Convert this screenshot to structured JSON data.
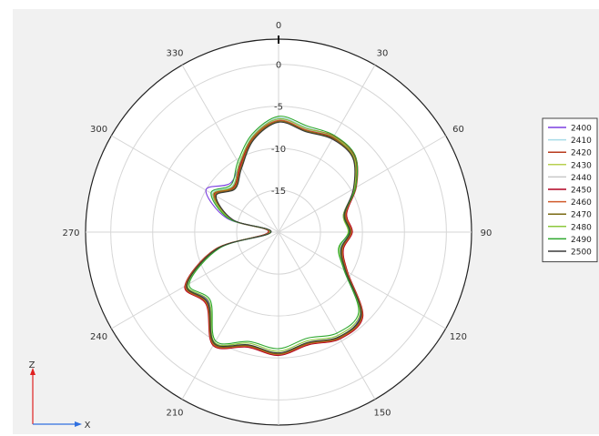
{
  "chart_data": {
    "type": "line",
    "subtype": "polar",
    "title": "",
    "angle_labels": [
      "0",
      "30",
      "60",
      "90",
      "120",
      "150",
      "180",
      "210",
      "240",
      "270",
      "300",
      "330"
    ],
    "radial_ticks": [
      "0",
      "-5",
      "-10",
      "-15"
    ],
    "rlim": [
      -20,
      3
    ],
    "grid": true,
    "legend_position": "right",
    "axes_glyph": {
      "vertical": "Z",
      "horizontal": "X"
    },
    "series_angles_deg": [
      0,
      15,
      30,
      45,
      60,
      75,
      90,
      105,
      120,
      135,
      150,
      165,
      180,
      195,
      210,
      225,
      240,
      255,
      270,
      285,
      300,
      315,
      330,
      345
    ],
    "series": [
      {
        "name": "2400",
        "color": "#7b3fe0",
        "values": [
          -6.8,
          -7.5,
          -7.2,
          -7.4,
          -9.5,
          -12.0,
          -11.5,
          -12.2,
          -10.8,
          -6.2,
          -5.5,
          -6.3,
          -5.5,
          -6.0,
          -4.6,
          -8.2,
          -7.4,
          -12.5,
          -19.0,
          -13.6,
          -10.0,
          -11.8,
          -10.7,
          -8.5
        ]
      },
      {
        "name": "2410",
        "color": "#a8dbe8",
        "values": [
          -6.4,
          -7.1,
          -6.9,
          -7.2,
          -9.4,
          -11.9,
          -11.6,
          -12.4,
          -10.7,
          -6.0,
          -5.3,
          -6.2,
          -5.3,
          -5.9,
          -4.5,
          -8.1,
          -7.3,
          -12.6,
          -18.8,
          -14.0,
          -10.8,
          -12.2,
          -10.6,
          -8.1
        ]
      },
      {
        "name": "2420",
        "color": "#b83a1c",
        "values": [
          -6.5,
          -7.2,
          -6.8,
          -7.1,
          -9.3,
          -11.7,
          -11.3,
          -12.1,
          -10.6,
          -5.9,
          -5.4,
          -6.2,
          -5.4,
          -5.9,
          -4.4,
          -7.9,
          -7.2,
          -12.3,
          -18.9,
          -14.1,
          -11.0,
          -12.4,
          -10.8,
          -8.2
        ]
      },
      {
        "name": "2430",
        "color": "#b8d050",
        "values": [
          -6.6,
          -7.3,
          -6.9,
          -7.3,
          -9.4,
          -11.8,
          -11.4,
          -12.2,
          -10.7,
          -6.0,
          -5.5,
          -6.3,
          -5.4,
          -6.0,
          -4.5,
          -8.0,
          -7.3,
          -12.4,
          -18.9,
          -14.2,
          -11.2,
          -12.5,
          -10.9,
          -8.3
        ]
      },
      {
        "name": "2440",
        "color": "#c8c8c8",
        "values": [
          -6.6,
          -7.3,
          -7.0,
          -7.3,
          -9.5,
          -11.8,
          -11.5,
          -12.3,
          -10.8,
          -6.1,
          -5.5,
          -6.4,
          -5.5,
          -6.1,
          -4.6,
          -8.1,
          -7.4,
          -12.5,
          -19.0,
          -14.3,
          -11.3,
          -12.6,
          -11.0,
          -8.4
        ]
      },
      {
        "name": "2450",
        "color": "#b00020",
        "values": [
          -6.7,
          -7.4,
          -7.0,
          -7.2,
          -9.4,
          -11.6,
          -11.2,
          -12.0,
          -10.5,
          -5.8,
          -5.3,
          -6.1,
          -5.3,
          -5.8,
          -4.4,
          -7.8,
          -7.1,
          -12.2,
          -18.8,
          -14.1,
          -11.1,
          -12.4,
          -10.9,
          -8.3
        ]
      },
      {
        "name": "2460",
        "color": "#d05a2a",
        "values": [
          -6.7,
          -7.4,
          -7.1,
          -7.3,
          -9.5,
          -11.7,
          -11.3,
          -12.1,
          -10.6,
          -5.9,
          -5.4,
          -6.2,
          -5.4,
          -5.9,
          -4.5,
          -7.9,
          -7.2,
          -12.3,
          -18.9,
          -14.2,
          -11.2,
          -12.5,
          -11.0,
          -8.4
        ]
      },
      {
        "name": "2470",
        "color": "#7a6a12",
        "values": [
          -6.8,
          -7.5,
          -7.1,
          -7.4,
          -9.6,
          -11.8,
          -11.4,
          -12.2,
          -10.7,
          -6.0,
          -5.5,
          -6.3,
          -5.5,
          -6.0,
          -4.6,
          -8.0,
          -7.3,
          -12.4,
          -19.0,
          -14.3,
          -11.3,
          -12.6,
          -11.1,
          -8.5
        ]
      },
      {
        "name": "2480",
        "color": "#8cc83c",
        "values": [
          -6.5,
          -7.2,
          -6.9,
          -7.3,
          -9.6,
          -12.0,
          -11.7,
          -12.5,
          -10.9,
          -6.3,
          -5.8,
          -6.6,
          -5.8,
          -6.3,
          -4.8,
          -8.3,
          -7.5,
          -12.6,
          -19.0,
          -14.1,
          -11.0,
          -12.3,
          -10.6,
          -8.2
        ]
      },
      {
        "name": "2490",
        "color": "#2ea82e",
        "values": [
          -6.2,
          -6.9,
          -6.7,
          -7.1,
          -9.4,
          -11.9,
          -11.6,
          -12.6,
          -11.0,
          -6.5,
          -6.1,
          -6.9,
          -6.1,
          -6.5,
          -5.0,
          -8.5,
          -7.7,
          -12.8,
          -19.1,
          -13.9,
          -10.7,
          -12.0,
          -10.3,
          -7.9
        ]
      },
      {
        "name": "2500",
        "color": "#3a3a3a",
        "values": [
          -6.9,
          -7.6,
          -7.2,
          -7.5,
          -9.7,
          -11.9,
          -11.5,
          -12.3,
          -10.8,
          -6.1,
          -5.6,
          -6.4,
          -5.6,
          -6.1,
          -4.7,
          -8.1,
          -7.4,
          -12.5,
          -19.1,
          -14.4,
          -11.4,
          -12.7,
          -11.2,
          -8.6
        ]
      }
    ]
  }
}
